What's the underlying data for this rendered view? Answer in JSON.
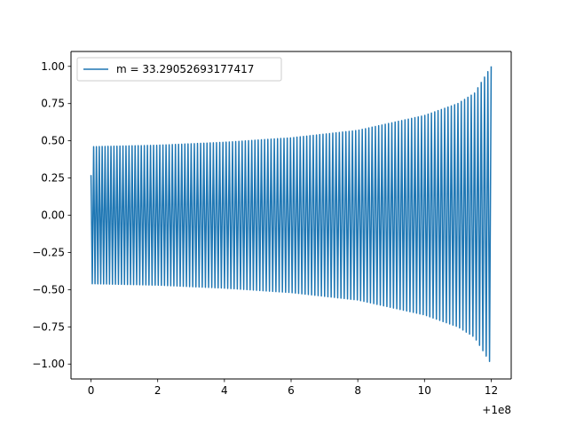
{
  "chart_data": {
    "type": "line",
    "title": "",
    "xlabel": "",
    "ylabel": "",
    "x_offset_label": "+1e8",
    "xlim": [
      -0.6,
      12.6
    ],
    "ylim": [
      -1.1,
      1.1
    ],
    "x_ticks": [
      {
        "value": 0,
        "label": "0"
      },
      {
        "value": 2,
        "label": "2"
      },
      {
        "value": 4,
        "label": "4"
      },
      {
        "value": 6,
        "label": "6"
      },
      {
        "value": 8,
        "label": "8"
      },
      {
        "value": 10,
        "label": "10"
      },
      {
        "value": 12,
        "label": "12"
      }
    ],
    "y_ticks": [
      {
        "value": 1.0,
        "label": "1.00"
      },
      {
        "value": 0.75,
        "label": "0.75"
      },
      {
        "value": 0.5,
        "label": "0.50"
      },
      {
        "value": 0.25,
        "label": "0.25"
      },
      {
        "value": 0.0,
        "label": "0.00"
      },
      {
        "value": -0.25,
        "label": "−0.25"
      },
      {
        "value": -0.5,
        "label": "−0.50"
      },
      {
        "value": -0.75,
        "label": "−0.75"
      },
      {
        "value": -1.0,
        "label": "−1.00"
      }
    ],
    "grid": false,
    "legend_position": "top-left",
    "series": [
      {
        "name": "m = 33.29052693177417",
        "color": "#1f77b4",
        "x_range": [
          0.0,
          12.0
        ],
        "start_value": 0.27,
        "envelope": [
          {
            "x": 0.0,
            "amplitude": 0.46
          },
          {
            "x": 2.0,
            "amplitude": 0.47
          },
          {
            "x": 4.0,
            "amplitude": 0.49
          },
          {
            "x": 6.0,
            "amplitude": 0.52
          },
          {
            "x": 8.0,
            "amplitude": 0.57
          },
          {
            "x": 10.0,
            "amplitude": 0.67
          },
          {
            "x": 11.0,
            "amplitude": 0.75
          },
          {
            "x": 11.5,
            "amplitude": 0.82
          },
          {
            "x": 12.0,
            "amplitude": 1.0
          }
        ]
      }
    ]
  }
}
